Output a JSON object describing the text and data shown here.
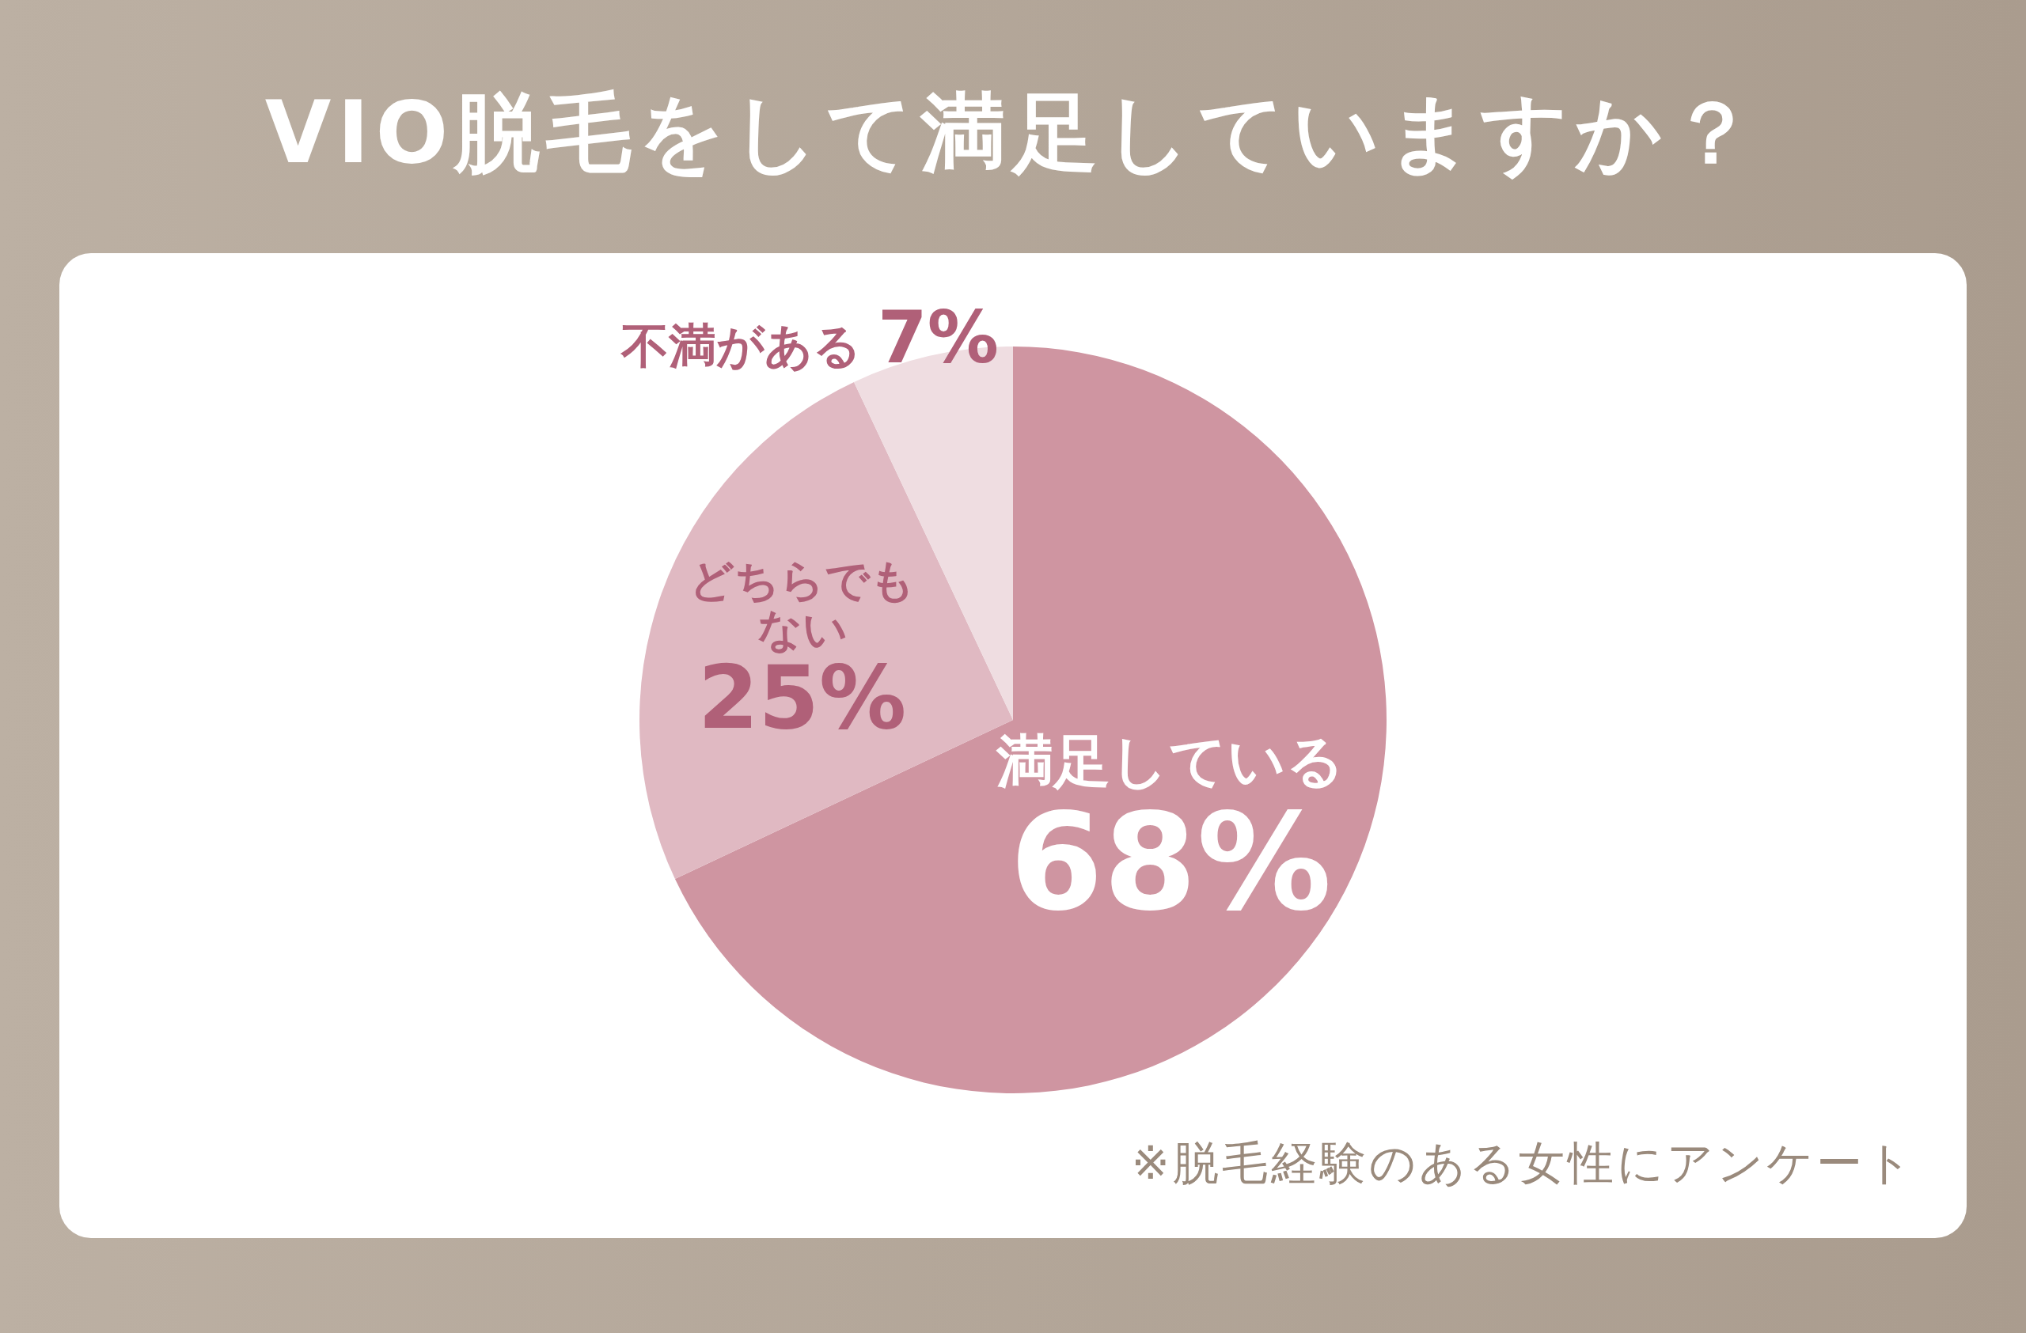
{
  "chart_data": {
    "type": "pie",
    "title": "VIO脱毛をして満足していますか？",
    "categories": [
      "満足している",
      "どちらでもない",
      "不満がある"
    ],
    "values": [
      68,
      25,
      7
    ],
    "value_labels": [
      "68%",
      "25%",
      "7%"
    ],
    "colors": [
      "#cf95a1",
      "#e0b9c2",
      "#efdde1"
    ],
    "annotations": [
      "※脱毛経験のある女性にアンケート"
    ]
  }
}
